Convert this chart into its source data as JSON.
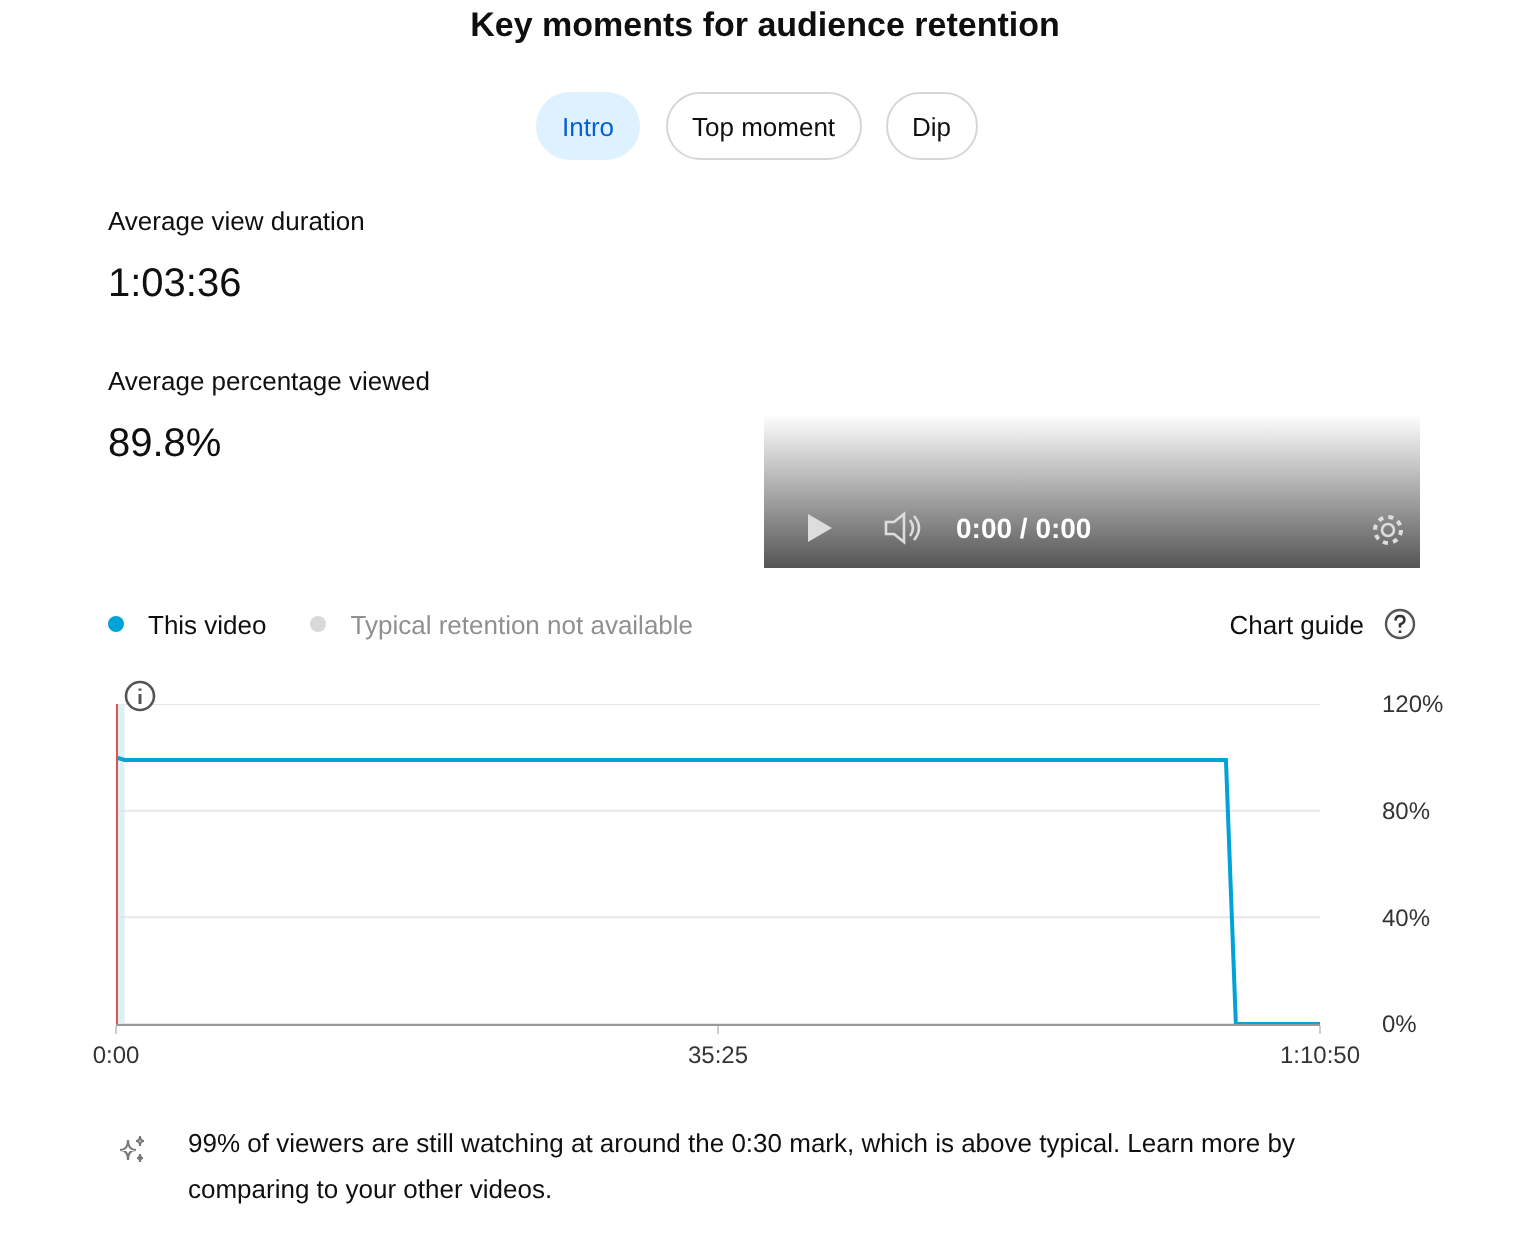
{
  "chart_data": {
    "type": "line",
    "title": "Key moments for audience retention",
    "x": [
      0,
      30,
      3918,
      3953,
      4250
    ],
    "series": [
      {
        "name": "This video",
        "color": "#00a3d7",
        "values": [
          100,
          99,
          99,
          0,
          0
        ]
      },
      {
        "name": "Typical retention not available",
        "color": "#d9d9d9",
        "values": [
          null,
          null,
          null,
          null,
          null
        ]
      }
    ],
    "xlim": [
      0,
      4250
    ],
    "xticks": [
      {
        "value": 0,
        "label": "0:00"
      },
      {
        "value": 2125,
        "label": "35:25"
      },
      {
        "value": 4250,
        "label": "1:10:50"
      }
    ],
    "ylim": [
      0,
      120
    ],
    "yticks": [
      {
        "value": 0,
        "label": "0%"
      },
      {
        "value": 40,
        "label": "40%"
      },
      {
        "value": 80,
        "label": "80%"
      },
      {
        "value": 120,
        "label": "120%"
      }
    ],
    "grid": "y",
    "legend": "top left",
    "marker": "none",
    "line_style": "solid",
    "ref_lines": [
      {
        "axis": "x",
        "value": 0,
        "color": "#d9534f"
      }
    ],
    "bands": [
      {
        "axis": "x",
        "from": 0,
        "to": 30,
        "color": "#dcf0f8"
      }
    ],
    "annotations": [
      "Intro",
      "Top moment",
      "Dip",
      "Average view duration",
      "1:03:36",
      "Average percentage viewed",
      "89.8%",
      "0:00 / 0:00",
      "Chart guide",
      "99% of viewers are still watching at around the 0:30 mark, which is above typical. Learn more by comparing to your other videos."
    ]
  }
}
